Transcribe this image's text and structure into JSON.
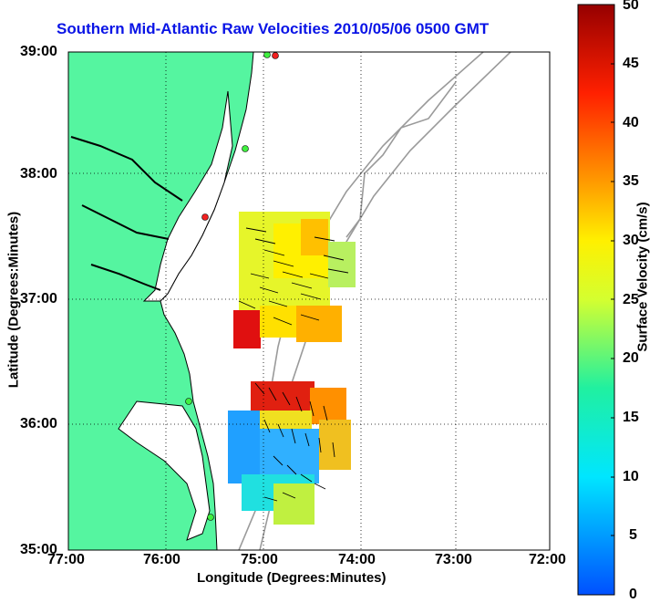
{
  "map": {
    "title": "Southern Mid-Atlantic Raw Velocities 2010/05/06 0500 GMT",
    "xlabel": "Longitude (Degrees:Minutes)",
    "ylabel": "Latitude (Degrees:Minutes)",
    "x_ticks": [
      "77:00",
      "76:00",
      "75:00",
      "74:00",
      "73:00",
      "72:00"
    ],
    "y_ticks": [
      "39:00",
      "38:00",
      "37:00",
      "36:00",
      "35:00"
    ],
    "colors": {
      "land": "#55f5a0",
      "coast": "#000000",
      "bathymetry": "#9a9a9a",
      "grid": "#000000",
      "title": "#0a14e6"
    }
  },
  "colorbar": {
    "label": "Surface Velocity (cm/s)",
    "ticks": [
      "0",
      "5",
      "10",
      "15",
      "20",
      "25",
      "30",
      "35",
      "40",
      "45",
      "50"
    ],
    "min": 0,
    "max": 50
  }
}
